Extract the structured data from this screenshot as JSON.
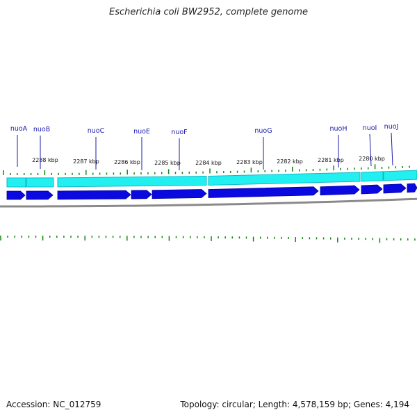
{
  "title": "Escherichia coli BW2952, complete genome",
  "accession": "Accession: NC_012759",
  "summary": "Topology: circular; Length: 4,578,159 bp; Genes: 4,194",
  "colors": {
    "gene_label": "#1a1aaa",
    "gene_arrow": "#0a0ae0",
    "cds_band": "#22f0f0",
    "tick": "#0a8a0a",
    "backbone": "#8a8a8a",
    "scale_text": "#111111"
  },
  "genes": [
    "nuoA",
    "nuoB",
    "nuoC",
    "nuoE",
    "nuoF",
    "nuoG",
    "nuoH",
    "nuoI",
    "nuoJ"
  ],
  "scale_labels": [
    "2288 kbp",
    "2287 kbp",
    "2286 kbp",
    "2285 kbp",
    "2284 kbp",
    "2283 kbp",
    "2282 kbp",
    "2281 kbp",
    "2280 kbp"
  ]
}
